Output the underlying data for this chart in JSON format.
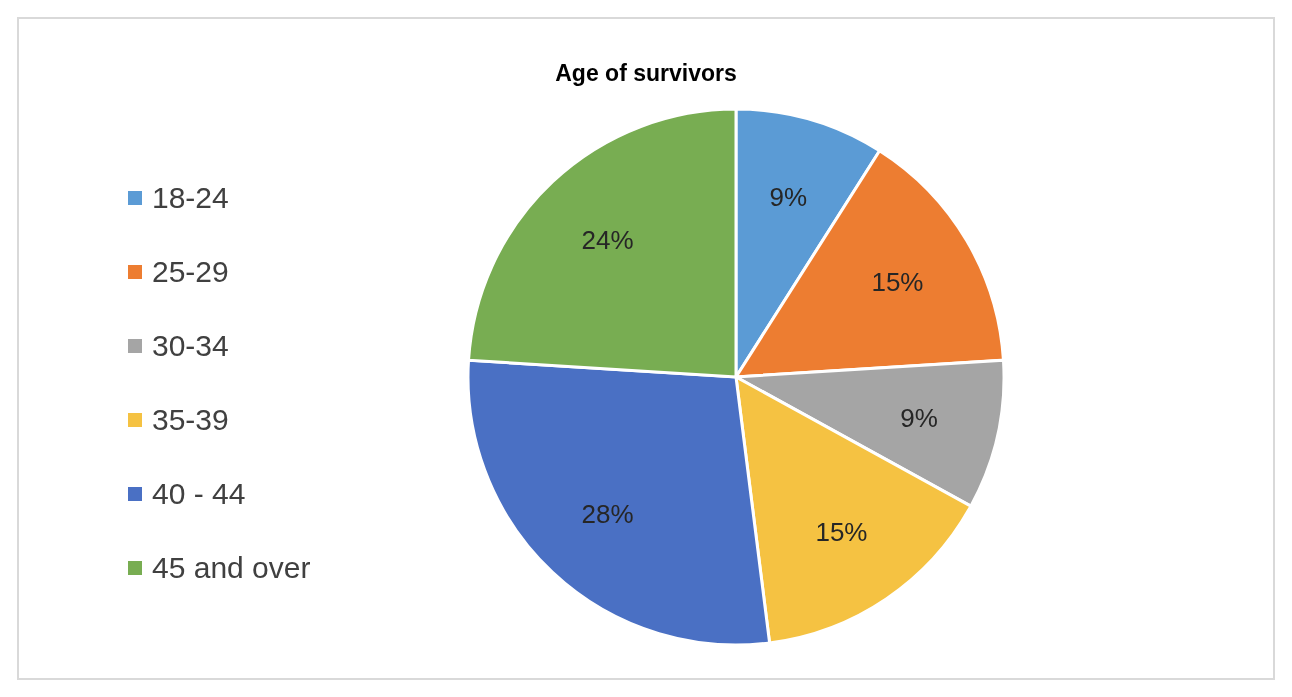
{
  "chart_data": {
    "type": "pie",
    "title": "Age of survivors",
    "categories": [
      "18-24",
      "25-29",
      "30-34",
      "35-39",
      "40 - 44",
      "45 and over"
    ],
    "values": [
      9,
      15,
      9,
      15,
      28,
      24
    ],
    "colors": [
      "#5b9bd5",
      "#ed7d31",
      "#a5a5a5",
      "#f5c242",
      "#4a70c4",
      "#78ad52"
    ],
    "value_labels": [
      "9%",
      "15%",
      "9%",
      "15%",
      "28%",
      "24%"
    ],
    "legend": "left"
  }
}
